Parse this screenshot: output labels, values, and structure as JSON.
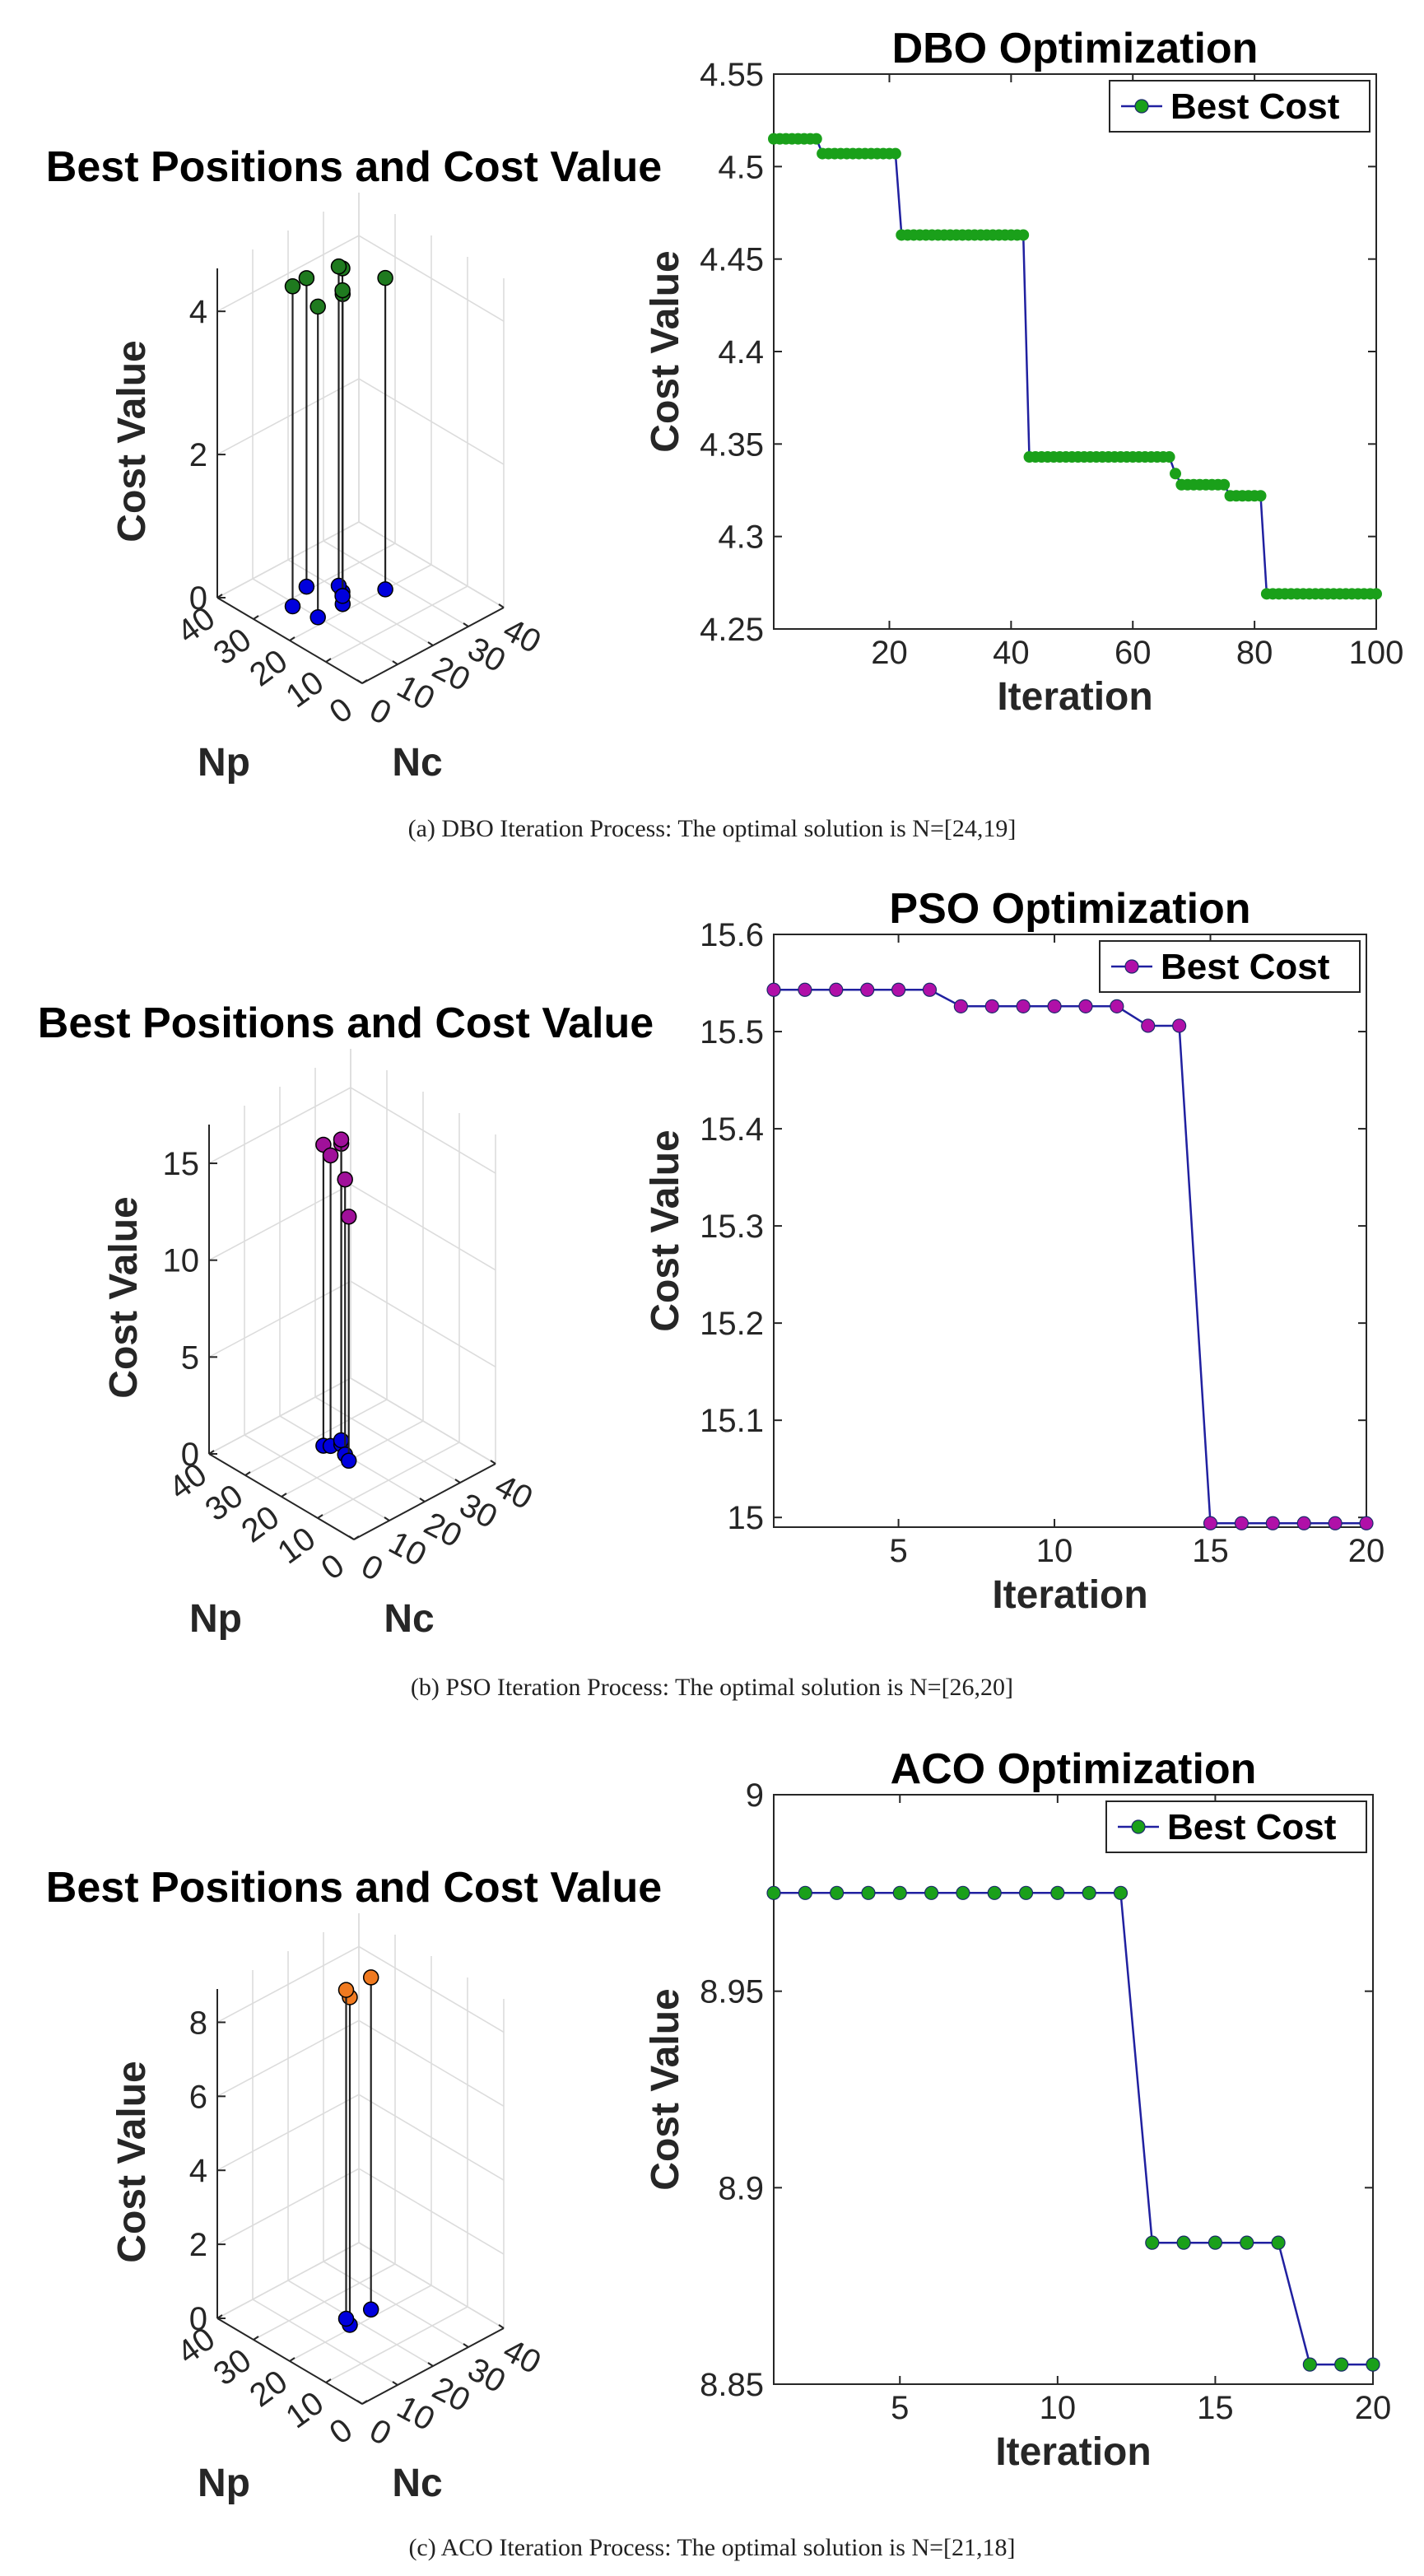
{
  "chart_data": [
    {
      "type": "scatter3d",
      "title": "Best Positions and Cost Value",
      "xlabel": "Np",
      "ylabel": "Nc",
      "zlabel": "Cost Value",
      "xlim": [
        0,
        40
      ],
      "ylim": [
        0,
        40
      ],
      "zlim": [
        0,
        4.6
      ],
      "xticks": [
        "0",
        "10",
        "20",
        "30",
        "40"
      ],
      "yticks": [
        "0",
        "10",
        "20",
        "30",
        "40"
      ],
      "zticks": [
        "0",
        "2",
        "4"
      ],
      "ztick_values": [
        0,
        2,
        4
      ],
      "marker_color": "#1f7a1f",
      "base_color": "#0000dd",
      "points": [
        {
          "np": 25,
          "nc": 20,
          "cost": 4.52
        },
        {
          "np": 27,
          "nc": 21,
          "cost": 4.46
        },
        {
          "np": 22,
          "nc": 17,
          "cost": 4.33
        },
        {
          "np": 24,
          "nc": 19,
          "cost": 4.27
        },
        {
          "np": 31,
          "nc": 16,
          "cost": 4.31
        },
        {
          "np": 22,
          "nc": 10,
          "cost": 4.34
        },
        {
          "np": 20,
          "nc": 27,
          "cost": 4.35
        },
        {
          "np": 28,
          "nc": 9,
          "cost": 4.47
        }
      ]
    },
    {
      "type": "line",
      "title": "DBO Optimization",
      "xlabel": "Iteration",
      "ylabel": "Cost Value",
      "xlim": [
        1,
        100
      ],
      "ylim": [
        4.25,
        4.55
      ],
      "xticks": [
        20,
        40,
        60,
        80,
        100
      ],
      "yticks": [
        4.25,
        4.3,
        4.35,
        4.4,
        4.45,
        4.5,
        4.55
      ],
      "ytick_labels": [
        "4.25",
        "4.3",
        "4.35",
        "4.4",
        "4.45",
        "4.5",
        "4.55"
      ],
      "legend": "Best Cost",
      "legend_position": "top-right",
      "line_color": "#2020a0",
      "marker_color": "#1aa01a",
      "segments": [
        {
          "from": 1,
          "to": 8,
          "value": 4.515
        },
        {
          "from": 9,
          "to": 21,
          "value": 4.507
        },
        {
          "from": 22,
          "to": 42,
          "value": 4.463
        },
        {
          "from": 43,
          "to": 66,
          "value": 4.343
        },
        {
          "from": 67,
          "to": 67,
          "value": 4.334
        },
        {
          "from": 68,
          "to": 75,
          "value": 4.328
        },
        {
          "from": 76,
          "to": 81,
          "value": 4.322
        },
        {
          "from": 82,
          "to": 100,
          "value": 4.269
        }
      ]
    },
    {
      "type": "scatter3d",
      "title": "Best Positions and Cost Value",
      "xlabel": "Np",
      "ylabel": "Nc",
      "zlabel": "Cost Value",
      "xlim": [
        0,
        40
      ],
      "ylim": [
        0,
        40
      ],
      "zlim": [
        0,
        17
      ],
      "xticks": [
        "0",
        "10",
        "20",
        "30",
        "40"
      ],
      "yticks": [
        "0",
        "10",
        "20",
        "30",
        "40"
      ],
      "zticks": [
        "0",
        "5",
        "10",
        "15"
      ],
      "ztick_values": [
        0,
        5,
        10,
        15
      ],
      "marker_color": "#a0109a",
      "base_color": "#0000dd",
      "points": [
        {
          "np": 27,
          "nc": 19,
          "cost": 15.54
        },
        {
          "np": 26,
          "nc": 20,
          "cost": 15.0
        },
        {
          "np": 25,
          "nc": 22,
          "cost": 15.52
        },
        {
          "np": 26,
          "nc": 23,
          "cost": 15.53
        },
        {
          "np": 22,
          "nc": 20,
          "cost": 14.2
        },
        {
          "np": 20,
          "nc": 19,
          "cost": 12.6
        }
      ]
    },
    {
      "type": "line",
      "title": "PSO Optimization",
      "xlabel": "Iteration",
      "ylabel": "Cost Value",
      "xlim": [
        1,
        20
      ],
      "ylim": [
        14.99,
        15.6
      ],
      "xticks": [
        5,
        10,
        15,
        20
      ],
      "yticks": [
        15,
        15.1,
        15.2,
        15.3,
        15.4,
        15.5,
        15.6
      ],
      "ytick_labels": [
        "15",
        "15.1",
        "15.2",
        "15.3",
        "15.4",
        "15.5",
        "15.6"
      ],
      "legend": "Best Cost",
      "legend_position": "top-right",
      "line_color": "#2020a0",
      "marker_color": "#b010a8",
      "segments": [
        {
          "from": 1,
          "to": 6,
          "value": 15.543
        },
        {
          "from": 7,
          "to": 12,
          "value": 15.526
        },
        {
          "from": 13,
          "to": 14,
          "value": 15.506
        },
        {
          "from": 15,
          "to": 20,
          "value": 14.994
        }
      ]
    },
    {
      "type": "scatter3d",
      "title": "Best Positions and Cost Value",
      "xlabel": "Np",
      "ylabel": "Nc",
      "zlabel": "Cost Value",
      "xlim": [
        0,
        40
      ],
      "ylim": [
        0,
        40
      ],
      "zlim": [
        0,
        8.9
      ],
      "xticks": [
        "0",
        "10",
        "20",
        "30",
        "40"
      ],
      "yticks": [
        "0",
        "10",
        "20",
        "30",
        "40"
      ],
      "zticks": [
        "0",
        "2",
        "4",
        "6",
        "8"
      ],
      "ztick_values": [
        0,
        2,
        4,
        6,
        8
      ],
      "marker_color": "#f07a20",
      "base_color": "#0000dd",
      "points": [
        {
          "np": 21,
          "nc": 18,
          "cost": 8.855
        },
        {
          "np": 23,
          "nc": 19,
          "cost": 8.886
        },
        {
          "np": 22,
          "nc": 25,
          "cost": 8.975
        }
      ]
    },
    {
      "type": "line",
      "title": "ACO Optimization",
      "xlabel": "Iteration",
      "ylabel": "Cost Value",
      "xlim": [
        1,
        20
      ],
      "ylim": [
        8.85,
        9.0
      ],
      "xticks": [
        5,
        10,
        15,
        20
      ],
      "yticks": [
        8.85,
        8.9,
        8.95,
        9.0
      ],
      "ytick_labels": [
        "8.85",
        "8.9",
        "8.95",
        "9"
      ],
      "legend": "Best Cost",
      "legend_position": "top-right",
      "line_color": "#2020a0",
      "marker_color": "#1aa01a",
      "segments": [
        {
          "from": 1,
          "to": 12,
          "value": 8.975
        },
        {
          "from": 13,
          "to": 17,
          "value": 8.886
        },
        {
          "from": 18,
          "to": 20,
          "value": 8.855
        }
      ]
    }
  ],
  "captions": {
    "a": "(a) DBO Iteration Process: The optimal solution is N=[24,19]",
    "b": "(b) PSO Iteration Process: The optimal solution is N=[26,20]",
    "c": "(c) ACO Iteration Process: The optimal solution is N=[21,18]"
  }
}
